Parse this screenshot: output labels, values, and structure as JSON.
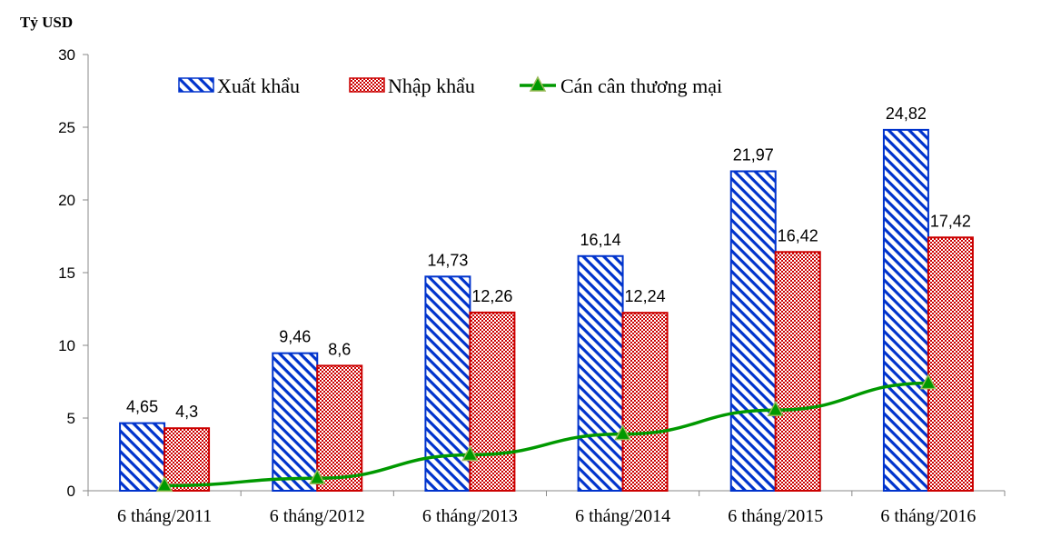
{
  "chart_data": {
    "type": "bar",
    "title": "",
    "ylabel": "Tỷ USD",
    "xlabel": "",
    "ylim": [
      0,
      30
    ],
    "yticks": [
      0,
      5,
      10,
      15,
      20,
      25,
      30
    ],
    "grid": false,
    "legend_position": "top",
    "categories": [
      "6 tháng/2011",
      "6 tháng/2012",
      "6 tháng/2013",
      "6 tháng/2014",
      "6 tháng/2015",
      "6 tháng/2016"
    ],
    "series": [
      {
        "name": "Xuất khẩu",
        "kind": "bar",
        "pattern": "diagonal-stripes",
        "color": "#0033cc",
        "values": [
          4.65,
          9.46,
          14.73,
          16.14,
          21.97,
          24.82
        ],
        "labels": [
          "4,65",
          "9,46",
          "14,73",
          "16,14",
          "21,97",
          "24,82"
        ]
      },
      {
        "name": "Nhập khẩu",
        "kind": "bar",
        "pattern": "checker",
        "color": "#cc0000",
        "values": [
          4.3,
          8.6,
          12.26,
          12.24,
          16.42,
          17.42
        ],
        "labels": [
          "4,3",
          "8,6",
          "12,26",
          "12,24",
          "16,42",
          "17,42"
        ]
      },
      {
        "name": "Cán cân thương mại",
        "kind": "line",
        "marker": "triangle",
        "color": "#009900",
        "values": [
          0.35,
          0.86,
          2.47,
          3.9,
          5.55,
          7.4
        ]
      }
    ]
  }
}
